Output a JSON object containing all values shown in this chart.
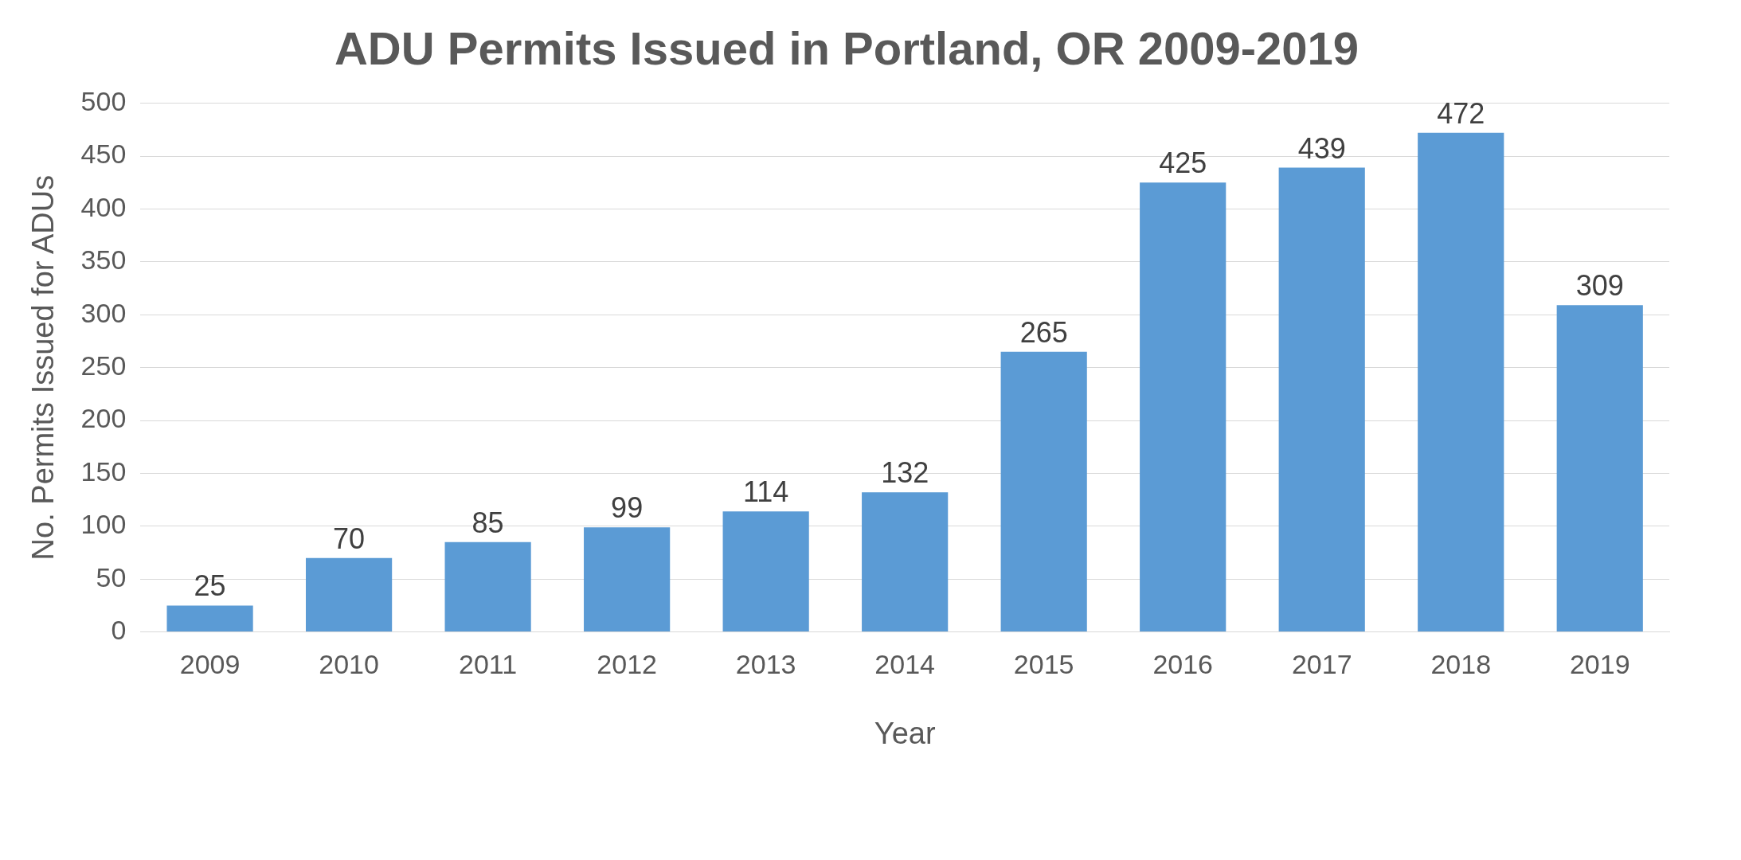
{
  "chart_data": {
    "type": "bar",
    "title": "ADU Permits Issued in Portland, OR 2009-2019",
    "xlabel": "Year",
    "ylabel": "No. Permits Issued for ADUs",
    "categories": [
      "2009",
      "2010",
      "2011",
      "2012",
      "2013",
      "2014",
      "2015",
      "2016",
      "2017",
      "2018",
      "2019"
    ],
    "values": [
      25,
      70,
      85,
      99,
      114,
      132,
      265,
      425,
      439,
      472,
      309
    ],
    "color": "#5b9bd5",
    "ylim": [
      0,
      500
    ],
    "yticks": [
      0,
      50,
      100,
      150,
      200,
      250,
      300,
      350,
      400,
      450,
      500
    ],
    "grid": "y",
    "data_labels": true,
    "legend": false
  }
}
